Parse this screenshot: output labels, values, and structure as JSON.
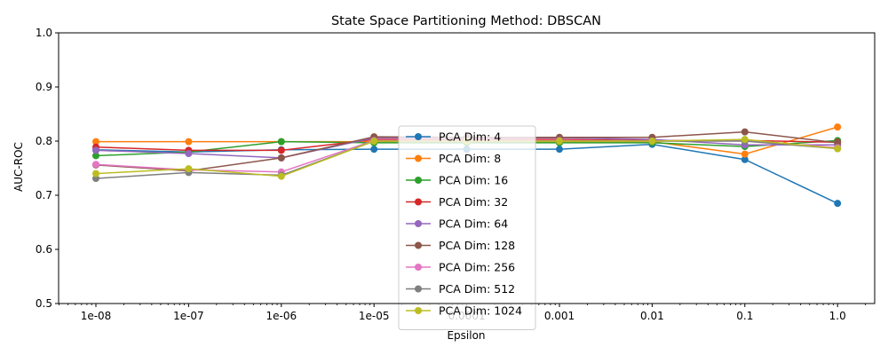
{
  "chart_data": {
    "type": "line",
    "title": "State Space Partitioning Method: DBSCAN",
    "xlabel": "Epsilon",
    "ylabel": "AUC-ROC",
    "xscale": "log",
    "x": [
      "1e-08",
      "1e-07",
      "1e-06",
      "1e-05",
      "0.0001",
      "0.001",
      "0.01",
      "0.1",
      "1.0"
    ],
    "ylim": [
      0.5,
      1.0
    ],
    "yticks": [
      "0.5",
      "0.6",
      "0.7",
      "0.8",
      "0.9",
      "1.0"
    ],
    "grid": false,
    "legend_position": "center",
    "series": [
      {
        "name": "PCA Dim: 4",
        "color": "#1f77b4",
        "values": [
          0.784,
          0.78,
          0.784,
          0.785,
          0.785,
          0.785,
          0.794,
          0.766,
          0.685
        ]
      },
      {
        "name": "PCA Dim: 8",
        "color": "#ff7f0e",
        "values": [
          0.799,
          0.799,
          0.799,
          0.799,
          0.799,
          0.799,
          0.799,
          0.776,
          0.826
        ]
      },
      {
        "name": "PCA Dim: 16",
        "color": "#2ca02c",
        "values": [
          0.773,
          0.78,
          0.799,
          0.797,
          0.797,
          0.797,
          0.797,
          0.79,
          0.801
        ]
      },
      {
        "name": "PCA Dim: 32",
        "color": "#d62728",
        "values": [
          0.789,
          0.783,
          0.783,
          0.803,
          0.803,
          0.803,
          0.801,
          0.801,
          0.798
        ]
      },
      {
        "name": "PCA Dim: 64",
        "color": "#9467bd",
        "values": [
          0.783,
          0.777,
          0.769,
          0.806,
          0.806,
          0.806,
          0.803,
          0.793,
          0.793
        ]
      },
      {
        "name": "PCA Dim: 128",
        "color": "#8c564b",
        "values": [
          0.756,
          0.745,
          0.769,
          0.808,
          0.807,
          0.807,
          0.807,
          0.817,
          0.797
        ]
      },
      {
        "name": "PCA Dim: 256",
        "color": "#e377c2",
        "values": [
          0.757,
          0.747,
          0.743,
          0.801,
          0.801,
          0.801,
          0.8,
          0.801,
          0.788
        ]
      },
      {
        "name": "PCA Dim: 512",
        "color": "#7f7f7f",
        "values": [
          0.731,
          0.742,
          0.737,
          0.8,
          0.8,
          0.8,
          0.8,
          0.8,
          0.786
        ]
      },
      {
        "name": "PCA Dim: 1024",
        "color": "#bcbd22",
        "values": [
          0.74,
          0.749,
          0.735,
          0.8,
          0.8,
          0.8,
          0.8,
          0.803,
          0.786
        ]
      }
    ]
  }
}
